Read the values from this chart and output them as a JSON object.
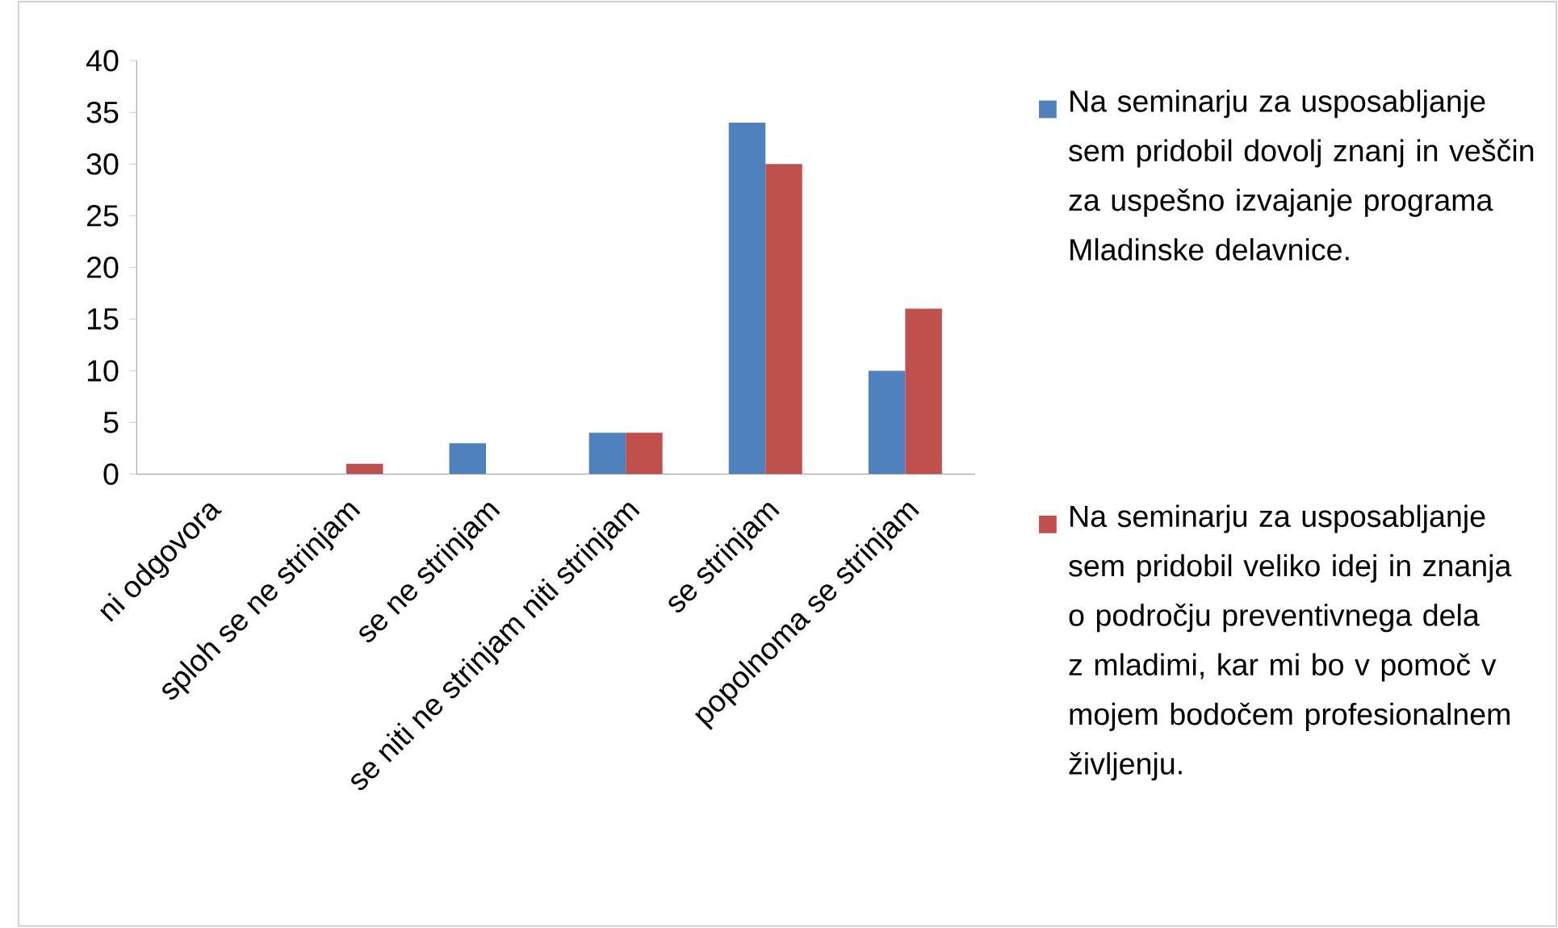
{
  "chart_data": {
    "type": "bar",
    "categories": [
      "ni odgovora",
      "sploh se ne strinjam",
      "se ne strinjam",
      "se niti ne strinjam niti strinjam",
      "se strinjam",
      "popolnoma se strinjam"
    ],
    "series": [
      {
        "name": "Na seminarju za usposabljanje sem pridobil dovolj znanj in veščin za uspešno izvajanje programa Mladinske delavnice.",
        "color": "#4f81bd",
        "values": [
          0,
          0,
          3,
          4,
          34,
          10
        ]
      },
      {
        "name": "Na seminarju za usposabljanje sem pridobil veliko idej in  znanja o področju preventivnega dela z mladimi, kar mi bo v pomoč v mojem bodočem profesionalnem življenju.",
        "color": "#c0504d",
        "values": [
          0,
          1,
          0,
          4,
          30,
          16
        ]
      }
    ],
    "ylim": [
      0,
      40
    ],
    "yticks": [
      0,
      5,
      10,
      15,
      20,
      25,
      30,
      35,
      40
    ],
    "grid": false,
    "legend": "right"
  }
}
